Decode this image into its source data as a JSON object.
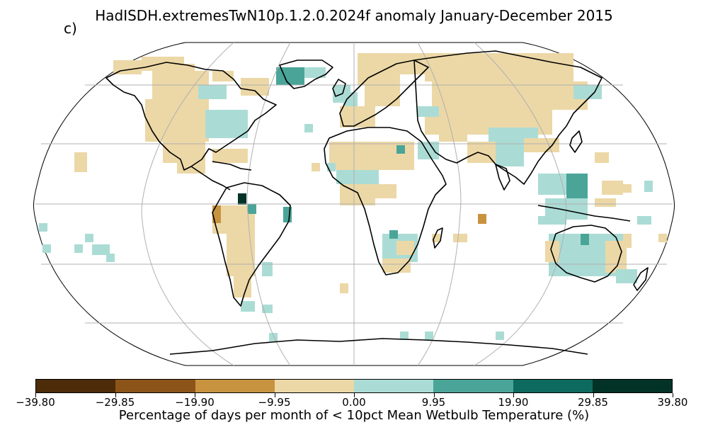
{
  "title": "HadISDH.extremesTwN10p.1.2.0.2024f anomaly January-December 2015",
  "panel_label": "c)",
  "colorbar": {
    "label": "Percentage of days per month of < 10pct Mean Wetbulb Temperature (%)",
    "ticks": [
      "−39.80",
      "−29.85",
      "−19.90",
      "−9.95",
      "0.00",
      "9.95",
      "19.90",
      "29.85",
      "39.80"
    ],
    "colors": [
      "#4d2c0a",
      "#8c5418",
      "#c8933f",
      "#ecd8a6",
      "#aadcd5",
      "#4aa598",
      "#0c6b5e",
      "#023326"
    ]
  },
  "map": {
    "projection": "Robinson",
    "gridlines": true,
    "coastline_color": "#000000",
    "grid_color": "#b0b0b0"
  }
}
